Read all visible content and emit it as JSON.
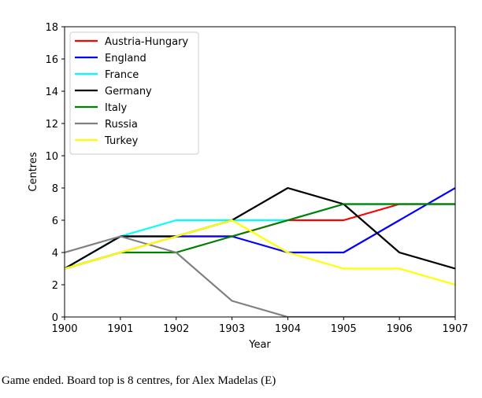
{
  "chart_data": {
    "type": "line",
    "xlabel": "Year",
    "ylabel": "Centres",
    "xlim": [
      1900,
      1907
    ],
    "ylim": [
      0,
      18
    ],
    "x_ticks": [
      1900,
      1901,
      1902,
      1903,
      1904,
      1905,
      1906,
      1907
    ],
    "y_ticks": [
      0,
      2,
      4,
      6,
      8,
      10,
      12,
      14,
      16,
      18
    ],
    "grid": false,
    "legend_position": "top-left",
    "series": [
      {
        "name": "Austria-Hungary",
        "color": "#ff0000",
        "x": [
          1900,
          1901,
          1902,
          1903,
          1904,
          1905,
          1906,
          1907
        ],
        "values": [
          3,
          4,
          5,
          5,
          6,
          6,
          7,
          7
        ]
      },
      {
        "name": "England",
        "color": "#0000ff",
        "x": [
          1900,
          1901,
          1902,
          1903,
          1904,
          1905,
          1906,
          1907
        ],
        "values": [
          3,
          5,
          5,
          5,
          4,
          4,
          6,
          8
        ]
      },
      {
        "name": "France",
        "color": "#00ffff",
        "x": [
          1900,
          1901,
          1902,
          1903,
          1904,
          1905,
          1906,
          1907
        ],
        "values": [
          3,
          5,
          6,
          6,
          6,
          7,
          7,
          7
        ]
      },
      {
        "name": "Germany",
        "color": "#000000",
        "x": [
          1900,
          1901,
          1902,
          1903,
          1904,
          1905,
          1906,
          1907
        ],
        "values": [
          3,
          5,
          5,
          6,
          8,
          7,
          4,
          3
        ]
      },
      {
        "name": "Italy",
        "color": "#008000",
        "x": [
          1900,
          1901,
          1902,
          1903,
          1904,
          1905,
          1906,
          1907
        ],
        "values": [
          3,
          4,
          4,
          5,
          6,
          7,
          7,
          7
        ]
      },
      {
        "name": "Russia",
        "color": "#808080",
        "x": [
          1900,
          1901,
          1902,
          1903,
          1904,
          1905,
          1906,
          1907
        ],
        "values": [
          4,
          5,
          4,
          1,
          0,
          0,
          0,
          0
        ]
      },
      {
        "name": "Turkey",
        "color": "#ffff00",
        "x": [
          1900,
          1901,
          1902,
          1903,
          1904,
          1905,
          1906,
          1907
        ],
        "values": [
          3,
          4,
          5,
          6,
          4,
          3,
          3,
          2
        ]
      }
    ]
  },
  "caption": "Game ended. Board top is 8 centres, for Alex Madelas (E)"
}
